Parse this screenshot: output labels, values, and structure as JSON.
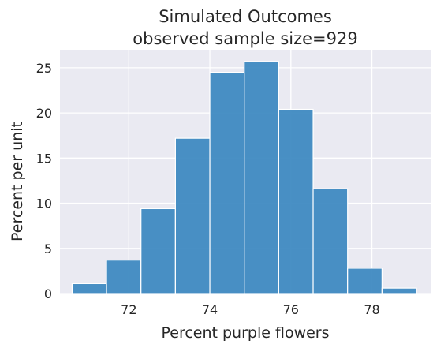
{
  "chart_data": {
    "type": "bar",
    "title": "Simulated Outcomes",
    "subtitle": "observed sample size=929",
    "xlabel": "Percent purple flowers",
    "ylabel": "Percent per unit",
    "xlim": [
      70.3,
      79.45
    ],
    "ylim": [
      0,
      27
    ],
    "xticks": [
      72,
      74,
      76,
      78
    ],
    "yticks": [
      0,
      5,
      10,
      15,
      20,
      25
    ],
    "grid": true,
    "bins": [
      {
        "start": 70.6,
        "end": 71.45,
        "value": 1.1
      },
      {
        "start": 71.45,
        "end": 72.3,
        "value": 3.7
      },
      {
        "start": 72.3,
        "end": 73.15,
        "value": 9.4
      },
      {
        "start": 73.15,
        "end": 74.0,
        "value": 17.2
      },
      {
        "start": 74.0,
        "end": 74.85,
        "value": 24.5
      },
      {
        "start": 74.85,
        "end": 75.7,
        "value": 25.7
      },
      {
        "start": 75.7,
        "end": 76.55,
        "value": 20.4
      },
      {
        "start": 76.55,
        "end": 77.4,
        "value": 11.6
      },
      {
        "start": 77.4,
        "end": 78.25,
        "value": 2.8
      },
      {
        "start": 78.25,
        "end": 79.1,
        "value": 0.6
      }
    ],
    "color": "#3a87c0"
  }
}
